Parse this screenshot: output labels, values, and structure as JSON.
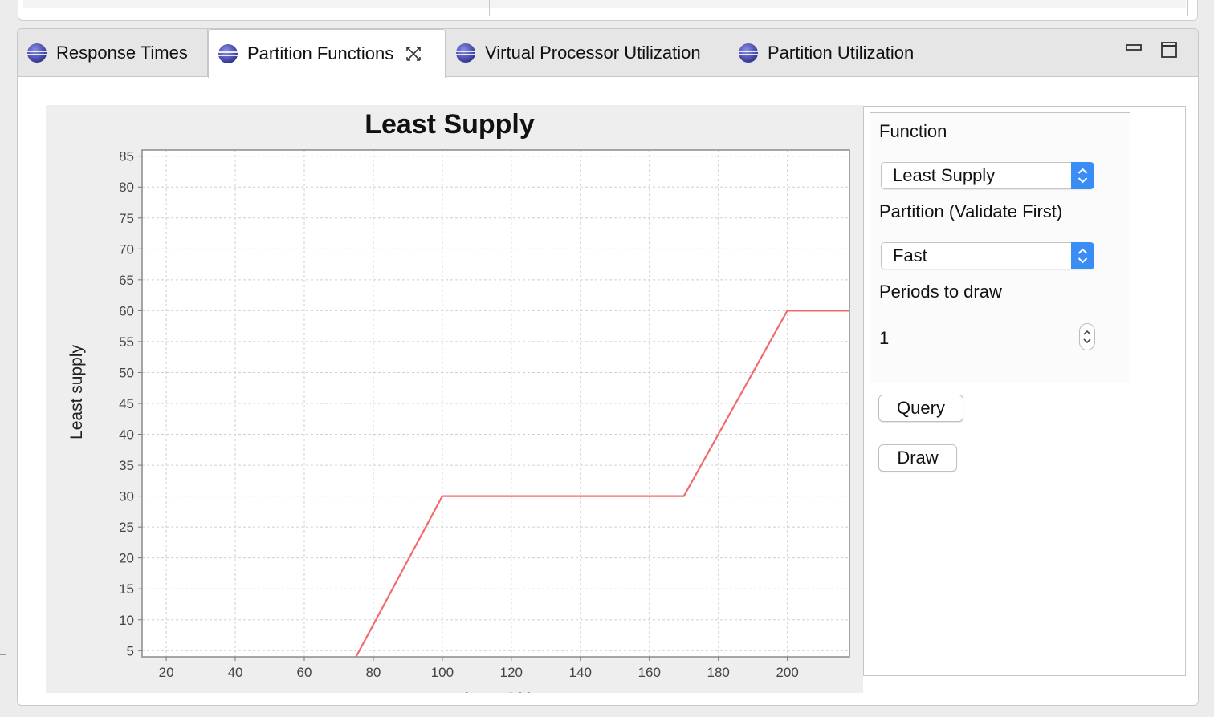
{
  "tabs": [
    {
      "label": "Response Times",
      "icon": "gear-icon"
    },
    {
      "label": "Partition Functions",
      "icon": "gear-icon",
      "active": true,
      "close_icon": "close-icon"
    },
    {
      "label": "Virtual Processor Utilization",
      "icon": "gear-icon"
    },
    {
      "label": "Partition Utilization",
      "icon": "gear-icon"
    }
  ],
  "window_controls": {
    "minimize_icon": "minimize-icon",
    "maximize_icon": "maximize-icon"
  },
  "chart_data": {
    "type": "line",
    "title": "Least Supply",
    "xlabel": "Time width",
    "ylabel": "Least supply",
    "xlim": [
      13,
      218
    ],
    "ylim": [
      4,
      86
    ],
    "xticks": [
      20,
      40,
      60,
      80,
      100,
      120,
      140,
      160,
      180,
      200
    ],
    "yticks": [
      5,
      10,
      15,
      20,
      25,
      30,
      35,
      40,
      45,
      50,
      55,
      60,
      65,
      70,
      75,
      80,
      85
    ],
    "grid": true,
    "series": [
      {
        "color": "#f06b6b",
        "x": [
          75,
          100,
          170,
          200,
          218
        ],
        "y": [
          4,
          30,
          30,
          60,
          60
        ]
      }
    ]
  },
  "panel": {
    "function_label": "Function",
    "function_value": "Least Supply",
    "partition_label": "Partition (Validate First)",
    "partition_value": "Fast",
    "periods_label": "Periods to draw",
    "periods_value": "1",
    "query_label": "Query",
    "draw_label": "Draw"
  }
}
